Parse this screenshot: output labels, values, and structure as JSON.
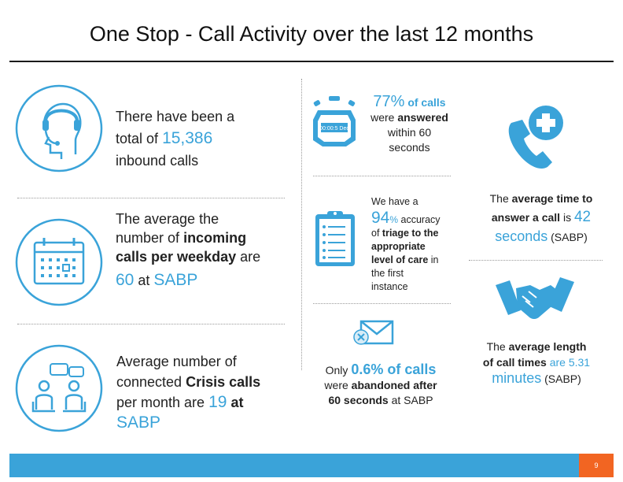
{
  "title": "One Stop - Call Activity over the last 12 months",
  "left": {
    "block1": {
      "l1": "There have been a",
      "l2a": "total of",
      "l2b": "15,386",
      "l3": "inbound calls"
    },
    "block2": {
      "l1": "The average the",
      "l2a": "number of",
      "l2b": "incoming",
      "l3a": "calls per weekday",
      "l3b": "are",
      "l4a": "60",
      "l4b": "at",
      "l4c": "SABP"
    },
    "block3": {
      "l1": "Average number of",
      "l2a": "connected",
      "l2b": "Crisis calls",
      "l3a": "per month are",
      "l3b": "19",
      "l3c": "at",
      "l4": "SABP"
    }
  },
  "middle": {
    "block1": {
      "pct": "77%",
      "of_calls": "of calls",
      "l2a": "were",
      "l2b": "answered",
      "l3": "within 60",
      "l4": "seconds",
      "timer_text": "00:00:5 Dec"
    },
    "block2": {
      "l1": "We have a",
      "pct": "94",
      "pct_sign": "%",
      "accuracy": "accuracy",
      "l3a": "of",
      "l3b": "triage to the",
      "l4": "appropriate",
      "l5a": "level of care",
      "l5b": "in",
      "l6": "the first",
      "l7": "instance"
    },
    "block3": {
      "only": "Only",
      "pct": "0.6% of calls",
      "l2a": "were",
      "l2b": "abandoned after",
      "l3a": "60 seconds",
      "l3b": "at SABP"
    }
  },
  "right": {
    "block1": {
      "l1a": "The",
      "l1b": "average time to",
      "l2a": "answer a call",
      "l2b": "is",
      "l2c": "42",
      "l3a": "seconds",
      "l3b": "(SABP)"
    },
    "block2": {
      "l1a": "The",
      "l1b": "average length",
      "l2a": "of call times",
      "l2b": "are 5.31",
      "l3a": "minutes",
      "l3b": "(SABP)"
    }
  },
  "footer": {
    "page": "9"
  },
  "colors": {
    "accent": "#3aa3d9",
    "footer": "#3aa3d9",
    "page_box": "#f26522"
  }
}
